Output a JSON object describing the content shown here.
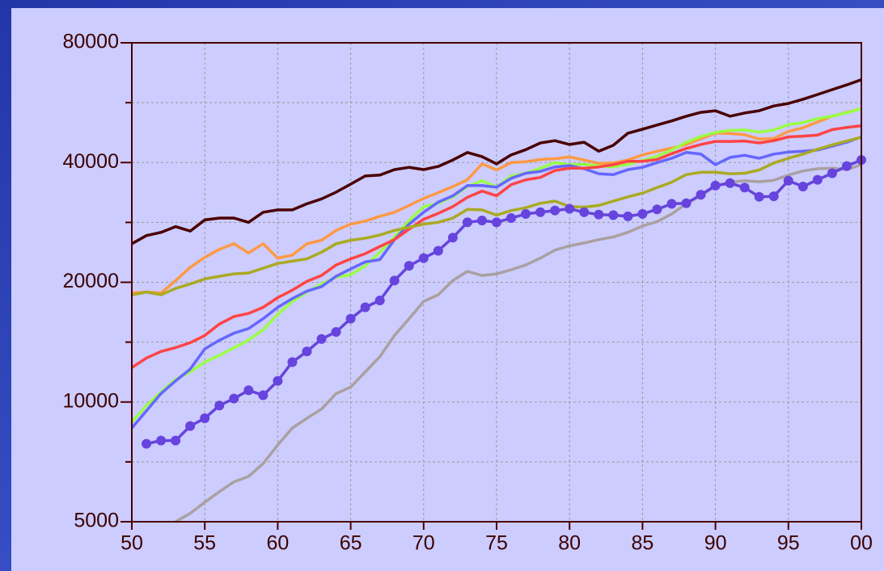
{
  "chart_data": {
    "type": "line",
    "yscale": "log",
    "grid": true,
    "x": [
      50,
      51,
      52,
      53,
      54,
      55,
      56,
      57,
      58,
      59,
      60,
      61,
      62,
      63,
      64,
      65,
      66,
      67,
      68,
      69,
      70,
      71,
      72,
      73,
      74,
      75,
      76,
      77,
      78,
      79,
      80,
      81,
      82,
      83,
      84,
      85,
      86,
      87,
      88,
      89,
      90,
      91,
      92,
      93,
      94,
      95,
      96,
      97,
      98,
      99,
      100
    ],
    "xlim": [
      50,
      100
    ],
    "xticks": [
      50,
      55,
      60,
      65,
      70,
      75,
      80,
      85,
      90,
      95,
      {
        "value": 100,
        "label": "00"
      }
    ],
    "ylim": [
      5000,
      80000
    ],
    "yticks": [
      5000,
      10000,
      20000,
      40000,
      80000
    ],
    "y_minor_ticks": [
      7071,
      14142,
      28284,
      56569
    ],
    "series": [
      {
        "color": "#4a0000",
        "values": [
          25000,
          26200,
          26700,
          27600,
          26900,
          28700,
          29000,
          29000,
          28300,
          30000,
          30400,
          30400,
          31500,
          32400,
          33700,
          35300,
          37000,
          37200,
          38400,
          38900,
          38400,
          39100,
          40600,
          42400,
          41400,
          39700,
          41800,
          43100,
          44800,
          45400,
          44400,
          45000,
          42700,
          44200,
          47400,
          48500,
          49700,
          50900,
          52300,
          53500,
          54000,
          52300,
          53300,
          54000,
          55500,
          56300,
          57700,
          59300,
          61000,
          62700,
          64600
        ]
      },
      {
        "color": "#ff9944",
        "values": [
          18800,
          18900,
          18800,
          20200,
          21800,
          23100,
          24200,
          25000,
          23700,
          25000,
          23000,
          23400,
          25000,
          25500,
          27000,
          28000,
          28500,
          29300,
          30000,
          31200,
          32500,
          33600,
          34800,
          36200,
          39700,
          38300,
          40000,
          40200,
          40700,
          40900,
          41300,
          40600,
          39800,
          39900,
          40600,
          41800,
          42700,
          43500,
          44400,
          45900,
          47400,
          47300,
          47000,
          45800,
          46000,
          47900,
          48900,
          50600,
          52300,
          53500,
          54600
        ]
      },
      {
        "color": "#99ff44",
        "values": [
          8900,
          9800,
          10600,
          11400,
          11900,
          12600,
          13100,
          13700,
          14300,
          15200,
          16600,
          17900,
          18900,
          19800,
          20600,
          20900,
          22000,
          23800,
          26000,
          28600,
          31000,
          31600,
          32800,
          34800,
          36000,
          34700,
          37000,
          37600,
          38700,
          40000,
          39500,
          39600,
          39200,
          39000,
          39600,
          40500,
          41500,
          43000,
          45000,
          46500,
          47600,
          48200,
          48300,
          47700,
          48300,
          49800,
          50400,
          51600,
          52300,
          53400,
          54600
        ]
      },
      {
        "color": "#6666ff",
        "values": [
          8600,
          9500,
          10500,
          11300,
          12100,
          13600,
          14300,
          14900,
          15300,
          16200,
          17300,
          18200,
          19000,
          19500,
          20700,
          21600,
          22500,
          22800,
          25600,
          28000,
          30000,
          31800,
          33000,
          35000,
          35000,
          34700,
          36500,
          37600,
          38000,
          39000,
          39300,
          38600,
          37500,
          37300,
          38400,
          38900,
          40000,
          41000,
          42400,
          42000,
          39500,
          41200,
          41700,
          41000,
          42000,
          42500,
          42700,
          43000,
          44000,
          45000,
          46400
        ]
      },
      {
        "color": "#ff4444",
        "values": [
          12200,
          12900,
          13400,
          13700,
          14100,
          14700,
          15700,
          16400,
          16700,
          17300,
          18300,
          19100,
          20100,
          20800,
          22100,
          22900,
          23600,
          24600,
          25600,
          27200,
          28800,
          29800,
          31000,
          32700,
          33900,
          33000,
          35200,
          36200,
          36700,
          38200,
          38700,
          38700,
          39000,
          39500,
          40300,
          40300,
          40700,
          42100,
          43400,
          44400,
          45200,
          45200,
          45300,
          44800,
          45400,
          46400,
          46600,
          46900,
          48400,
          49000,
          49500
        ]
      },
      {
        "color": "#aaaa22",
        "values": [
          18600,
          18900,
          18600,
          19300,
          19800,
          20400,
          20700,
          21000,
          21100,
          21700,
          22300,
          22600,
          22900,
          23800,
          25000,
          25500,
          25800,
          26300,
          27000,
          27500,
          28000,
          28300,
          29000,
          30500,
          30400,
          29500,
          30300,
          30800,
          31600,
          32000,
          31000,
          30900,
          31200,
          32000,
          32800,
          33500,
          34600,
          35700,
          37300,
          37800,
          37800,
          37500,
          37600,
          38300,
          39900,
          41000,
          42000,
          43200,
          44300,
          45300,
          46300
        ]
      },
      {
        "color": "#aaa0a0",
        "values": [
          null,
          null,
          null,
          5000,
          5250,
          5600,
          5950,
          6300,
          6500,
          7000,
          7800,
          8600,
          9100,
          9600,
          10500,
          10900,
          11900,
          13000,
          14700,
          16200,
          17900,
          18600,
          20200,
          21300,
          20800,
          21000,
          21500,
          22100,
          23000,
          24100,
          24700,
          25100,
          25600,
          26000,
          26700,
          27700,
          28400,
          29700,
          31500,
          33000,
          34900,
          35700,
          36000,
          35800,
          36100,
          37200,
          38100,
          38600,
          38700,
          38400,
          39500
        ]
      },
      {
        "color": "#6644dd",
        "markers": true,
        "values": [
          null,
          7850,
          8000,
          8000,
          8700,
          9100,
          9800,
          10200,
          10700,
          10400,
          11300,
          12600,
          13400,
          14400,
          15000,
          16200,
          17300,
          18000,
          20200,
          22000,
          23000,
          24000,
          25900,
          28300,
          28600,
          28300,
          29000,
          29700,
          30000,
          30300,
          30600,
          30000,
          29600,
          29500,
          29300,
          29700,
          30500,
          31500,
          31600,
          33200,
          35000,
          35500,
          34600,
          32800,
          32900,
          36000,
          34800,
          36200,
          37600,
          39200,
          40600
        ]
      }
    ]
  }
}
